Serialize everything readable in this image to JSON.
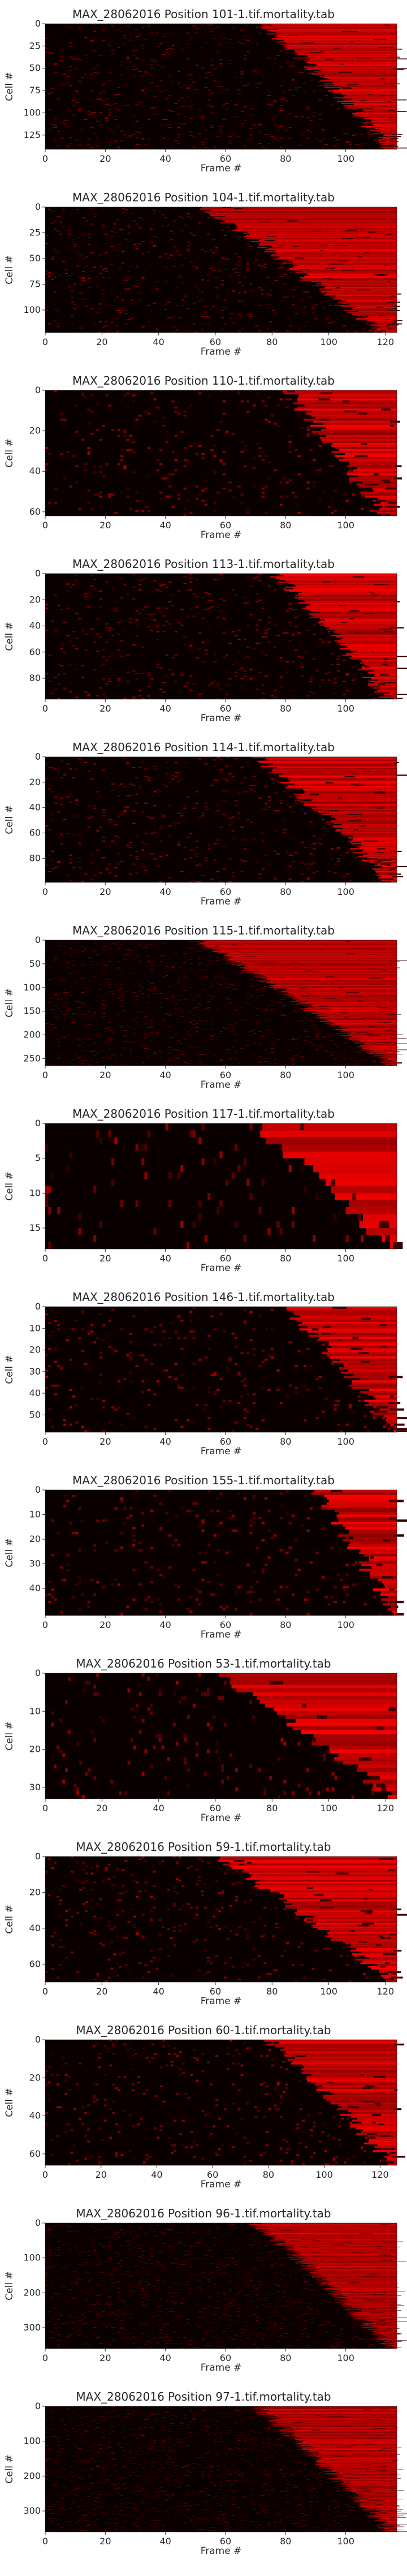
{
  "chart_data": [
    {
      "type": "heatmap",
      "title": "MAX_28062016 Position 101-1.tif.mortality.tab",
      "xlabel": "Frame #",
      "ylabel": "Cell #",
      "rows": 141,
      "cols": 117,
      "xticks": [
        0,
        20,
        40,
        60,
        80,
        100
      ],
      "yticks": [
        0,
        25,
        50,
        75,
        100,
        125
      ],
      "onset_range": [
        72,
        115
      ],
      "colormap": "black-red"
    },
    {
      "type": "heatmap",
      "title": "MAX_28062016 Position 104-1.tif.mortality.tab",
      "xlabel": "Frame #",
      "ylabel": "Cell #",
      "rows": 122,
      "cols": 124,
      "xticks": [
        0,
        20,
        40,
        60,
        80,
        100,
        120
      ],
      "yticks": [
        0,
        25,
        50,
        75,
        100
      ],
      "onset_range": [
        55,
        118
      ],
      "colormap": "black-red"
    },
    {
      "type": "heatmap",
      "title": "MAX_28062016 Position 110-1.tif.mortality.tab",
      "xlabel": "Frame #",
      "ylabel": "Cell #",
      "rows": 62,
      "cols": 117,
      "xticks": [
        0,
        20,
        40,
        60,
        80,
        100
      ],
      "yticks": [
        0,
        20,
        40,
        60
      ],
      "onset_range": [
        80,
        112
      ],
      "colormap": "black-red"
    },
    {
      "type": "heatmap",
      "title": "MAX_28062016 Position 113-1.tif.mortality.tab",
      "xlabel": "Frame #",
      "ylabel": "Cell #",
      "rows": 96,
      "cols": 117,
      "xticks": [
        0,
        20,
        40,
        60,
        80,
        100
      ],
      "yticks": [
        0,
        20,
        40,
        60,
        80
      ],
      "onset_range": [
        76,
        114
      ],
      "colormap": "black-red"
    },
    {
      "type": "heatmap",
      "title": "MAX_28062016 Position 114-1.tif.mortality.tab",
      "xlabel": "Frame #",
      "ylabel": "Cell #",
      "rows": 99,
      "cols": 117,
      "xticks": [
        0,
        20,
        40,
        60,
        80,
        100
      ],
      "yticks": [
        0,
        20,
        40,
        60,
        80
      ],
      "onset_range": [
        70,
        115
      ],
      "colormap": "black-red"
    },
    {
      "type": "heatmap",
      "title": "MAX_28062016 Position 115-1.tif.mortality.tab",
      "xlabel": "Frame #",
      "ylabel": "Cell #",
      "rows": 265,
      "cols": 117,
      "xticks": [
        0,
        20,
        40,
        60,
        80,
        100
      ],
      "yticks": [
        0,
        50,
        100,
        150,
        200,
        250
      ],
      "onset_range": [
        50,
        115
      ],
      "colormap": "black-red"
    },
    {
      "type": "heatmap",
      "title": "MAX_28062016 Position 117-1.tif.mortality.tab",
      "xlabel": "Frame #",
      "ylabel": "Cell #",
      "rows": 18,
      "cols": 117,
      "xticks": [
        0,
        20,
        40,
        60,
        80,
        100
      ],
      "yticks": [
        0,
        5,
        10,
        15
      ],
      "onset_range": [
        70,
        112
      ],
      "colormap": "black-red"
    },
    {
      "type": "heatmap",
      "title": "MAX_28062016 Position 146-1.tif.mortality.tab",
      "xlabel": "Frame #",
      "ylabel": "Cell #",
      "rows": 58,
      "cols": 117,
      "xticks": [
        0,
        20,
        40,
        60,
        80,
        100
      ],
      "yticks": [
        0,
        10,
        20,
        30,
        40,
        50
      ],
      "onset_range": [
        80,
        116
      ],
      "colormap": "black-red"
    },
    {
      "type": "heatmap",
      "title": "MAX_28062016 Position 155-1.tif.mortality.tab",
      "xlabel": "Frame #",
      "ylabel": "Cell #",
      "rows": 51,
      "cols": 117,
      "xticks": [
        0,
        20,
        40,
        60,
        80,
        100
      ],
      "yticks": [
        0,
        10,
        20,
        30,
        40
      ],
      "onset_range": [
        90,
        116
      ],
      "colormap": "black-red"
    },
    {
      "type": "heatmap",
      "title": "MAX_28062016 Position 53-1.tif.mortality.tab",
      "xlabel": "Frame #",
      "ylabel": "Cell #",
      "rows": 33,
      "cols": 124,
      "xticks": [
        0,
        20,
        40,
        60,
        80,
        100,
        120
      ],
      "yticks": [
        0,
        10,
        20,
        30
      ],
      "onset_range": [
        60,
        122
      ],
      "colormap": "black-red"
    },
    {
      "type": "heatmap",
      "title": "MAX_28062016 Position 59-1.tif.mortality.tab",
      "xlabel": "Frame #",
      "ylabel": "Cell #",
      "rows": 70,
      "cols": 124,
      "xticks": [
        0,
        20,
        40,
        60,
        80,
        100,
        120
      ],
      "yticks": [
        0,
        20,
        40,
        60
      ],
      "onset_range": [
        60,
        122
      ],
      "colormap": "black-red"
    },
    {
      "type": "heatmap",
      "title": "MAX_28062016 Position 60-1.tif.mortality.tab",
      "xlabel": "Frame #",
      "ylabel": "Cell #",
      "rows": 66,
      "cols": 126,
      "xticks": [
        0,
        20,
        40,
        60,
        80,
        100,
        120
      ],
      "yticks": [
        0,
        20,
        40,
        60
      ],
      "onset_range": [
        80,
        124
      ],
      "colormap": "black-red"
    },
    {
      "type": "heatmap",
      "title": "MAX_28062016 Position 96-1.tif.mortality.tab",
      "xlabel": "Frame #",
      "ylabel": "Cell #",
      "rows": 360,
      "cols": 117,
      "xticks": [
        0,
        20,
        40,
        60,
        80,
        100
      ],
      "yticks": [
        0,
        100,
        200,
        300
      ],
      "onset_range": [
        70,
        115
      ],
      "colormap": "black-red"
    },
    {
      "type": "heatmap",
      "title": "MAX_28062016 Position 97-1.tif.mortality.tab",
      "xlabel": "Frame #",
      "ylabel": "Cell #",
      "rows": 360,
      "cols": 117,
      "xticks": [
        0,
        20,
        40,
        60,
        80,
        100
      ],
      "yticks": [
        0,
        100,
        200,
        300
      ],
      "onset_range": [
        70,
        115
      ],
      "colormap": "black-red"
    }
  ]
}
